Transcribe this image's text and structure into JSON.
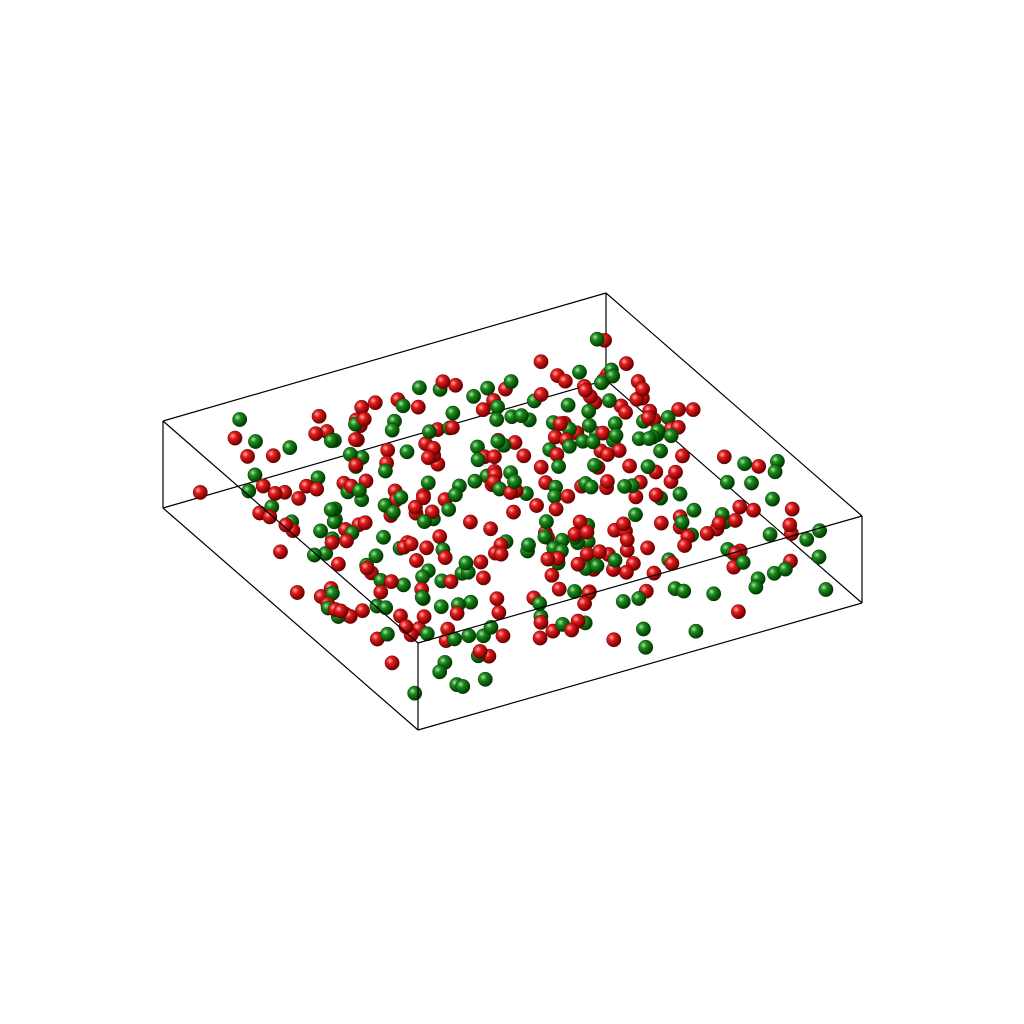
{
  "scene": {
    "background": "#ffffff",
    "box_edge_color": "#000000",
    "particle_colors": [
      "#e31b1b",
      "#1e8a1e"
    ]
  }
}
